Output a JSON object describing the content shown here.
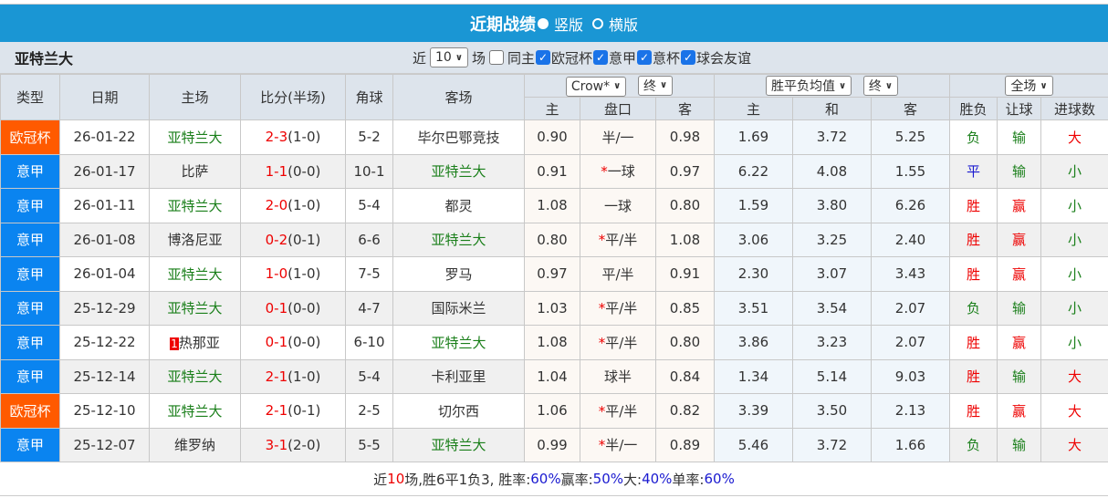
{
  "title": {
    "label": "近期战绩",
    "opt_vertical": "竖版",
    "opt_horizontal": "横版"
  },
  "filter": {
    "team": "亚特兰大",
    "near": "近",
    "count": "10",
    "unit": "场",
    "checkboxes": [
      {
        "label": "同主",
        "checked": false
      },
      {
        "label": "欧冠杯",
        "checked": true
      },
      {
        "label": "意甲",
        "checked": true
      },
      {
        "label": "意杯",
        "checked": true
      },
      {
        "label": "球会友谊",
        "checked": true
      }
    ]
  },
  "header": {
    "type": "类型",
    "date": "日期",
    "home": "主场",
    "score": "比分(半场)",
    "corner": "角球",
    "away": "客场",
    "company": "Crow*",
    "company_stage": "终",
    "odds_type": "胜平负均值",
    "odds_stage": "终",
    "scope": "全场",
    "sub": [
      "主",
      "盘口",
      "客",
      "主",
      "和",
      "客",
      "胜负",
      "让球",
      "进球数"
    ]
  },
  "colors": {
    "ucl": "#ff5a00",
    "serie_a": "#0a84f0",
    "highlight_team": "#1a7f1a",
    "score": "#e00000"
  },
  "rows": [
    {
      "type": "欧冠杯",
      "league": "ucl",
      "date": "26-01-22",
      "home": "亚特兰大",
      "home_hl": true,
      "score": "2-3",
      "half": "(1-0)",
      "corner": "5-2",
      "away": "毕尔巴鄂竞技",
      "away_hl": false,
      "h": "0.90",
      "line": "半/一",
      "star": false,
      "a": "0.98",
      "w": "1.69",
      "d": "3.72",
      "l": "5.25",
      "res": "负",
      "hc": "输",
      "ou": "大"
    },
    {
      "type": "意甲",
      "league": "serie_a",
      "date": "26-01-17",
      "home": "比萨",
      "home_hl": false,
      "score": "1-1",
      "half": "(0-0)",
      "corner": "10-1",
      "away": "亚特兰大",
      "away_hl": true,
      "h": "0.91",
      "line": "一球",
      "star": true,
      "a": "0.97",
      "w": "6.22",
      "d": "4.08",
      "l": "1.55",
      "res": "平",
      "hc": "输",
      "ou": "小"
    },
    {
      "type": "意甲",
      "league": "serie_a",
      "date": "26-01-11",
      "home": "亚特兰大",
      "home_hl": true,
      "score": "2-0",
      "half": "(1-0)",
      "corner": "5-4",
      "away": "都灵",
      "away_hl": false,
      "h": "1.08",
      "line": "一球",
      "star": false,
      "a": "0.80",
      "w": "1.59",
      "d": "3.80",
      "l": "6.26",
      "res": "胜",
      "hc": "赢",
      "ou": "小"
    },
    {
      "type": "意甲",
      "league": "serie_a",
      "date": "26-01-08",
      "home": "博洛尼亚",
      "home_hl": false,
      "score": "0-2",
      "half": "(0-1)",
      "corner": "6-6",
      "away": "亚特兰大",
      "away_hl": true,
      "h": "0.80",
      "line": "平/半",
      "star": true,
      "a": "1.08",
      "w": "3.06",
      "d": "3.25",
      "l": "2.40",
      "res": "胜",
      "hc": "赢",
      "ou": "小"
    },
    {
      "type": "意甲",
      "league": "serie_a",
      "date": "26-01-04",
      "home": "亚特兰大",
      "home_hl": true,
      "score": "1-0",
      "half": "(1-0)",
      "corner": "7-5",
      "away": "罗马",
      "away_hl": false,
      "h": "0.97",
      "line": "平/半",
      "star": false,
      "a": "0.91",
      "w": "2.30",
      "d": "3.07",
      "l": "3.43",
      "res": "胜",
      "hc": "赢",
      "ou": "小"
    },
    {
      "type": "意甲",
      "league": "serie_a",
      "date": "25-12-29",
      "home": "亚特兰大",
      "home_hl": true,
      "score": "0-1",
      "half": "(0-0)",
      "corner": "4-7",
      "away": "国际米兰",
      "away_hl": false,
      "h": "1.03",
      "line": "平/半",
      "star": true,
      "a": "0.85",
      "w": "3.51",
      "d": "3.54",
      "l": "2.07",
      "res": "负",
      "hc": "输",
      "ou": "小"
    },
    {
      "type": "意甲",
      "league": "serie_a",
      "date": "25-12-22",
      "home": "热那亚",
      "home_rank": "1",
      "home_hl": false,
      "score": "0-1",
      "half": "(0-0)",
      "corner": "6-10",
      "away": "亚特兰大",
      "away_hl": true,
      "h": "1.08",
      "line": "平/半",
      "star": true,
      "a": "0.80",
      "w": "3.86",
      "d": "3.23",
      "l": "2.07",
      "res": "胜",
      "hc": "赢",
      "ou": "小"
    },
    {
      "type": "意甲",
      "league": "serie_a",
      "date": "25-12-14",
      "home": "亚特兰大",
      "home_hl": true,
      "score": "2-1",
      "half": "(1-0)",
      "corner": "5-4",
      "away": "卡利亚里",
      "away_hl": false,
      "h": "1.04",
      "line": "球半",
      "star": false,
      "a": "0.84",
      "w": "1.34",
      "d": "5.14",
      "l": "9.03",
      "res": "胜",
      "hc": "输",
      "ou": "大"
    },
    {
      "type": "欧冠杯",
      "league": "ucl",
      "date": "25-12-10",
      "home": "亚特兰大",
      "home_hl": true,
      "score": "2-1",
      "half": "(0-1)",
      "corner": "2-5",
      "away": "切尔西",
      "away_hl": false,
      "h": "1.06",
      "line": "平/半",
      "star": true,
      "a": "0.82",
      "w": "3.39",
      "d": "3.50",
      "l": "2.13",
      "res": "胜",
      "hc": "赢",
      "ou": "大"
    },
    {
      "type": "意甲",
      "league": "serie_a",
      "date": "25-12-07",
      "home": "维罗纳",
      "home_hl": false,
      "score": "3-1",
      "half": "(2-0)",
      "corner": "5-5",
      "away": "亚特兰大",
      "away_hl": true,
      "h": "0.99",
      "line": "半/一",
      "star": true,
      "a": "0.89",
      "w": "5.46",
      "d": "3.72",
      "l": "1.66",
      "res": "负",
      "hc": "输",
      "ou": "大"
    }
  ],
  "footer": {
    "p1": "近",
    "n": "10",
    "p2": "场,胜6平1负3, 胜率:",
    "win": "60%",
    "p3": " 赢率:",
    "cover": "50%",
    "p4": " 大:",
    "over": "40%",
    "p5": " 单率:",
    "odd": "60%"
  }
}
